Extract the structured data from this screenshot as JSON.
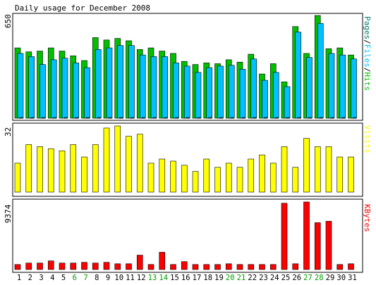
{
  "chart_data": [
    {
      "type": "bar",
      "title": "Daily usage for December 2008",
      "ylabel_left": "650",
      "series": [
        {
          "name": "Pages",
          "color": "#00806b",
          "values": [
            4,
            4,
            4,
            4,
            4,
            4,
            4,
            4,
            4,
            4,
            4,
            4,
            4,
            4,
            4,
            4,
            4,
            4,
            4,
            4,
            4,
            4,
            4,
            4,
            4,
            4,
            4,
            4,
            4,
            4,
            4
          ]
        },
        {
          "name": "Files",
          "color": "#00c0ff",
          "values": [
            410,
            390,
            340,
            370,
            380,
            350,
            320,
            435,
            445,
            460,
            460,
            400,
            390,
            390,
            350,
            330,
            290,
            320,
            330,
            335,
            310,
            375,
            240,
            290,
            200,
            545,
            385,
            600,
            410,
            400,
            375
          ]
        },
        {
          "name": "Hits",
          "color": "#00c000",
          "values": [
            445,
            420,
            425,
            445,
            425,
            395,
            365,
            510,
            495,
            505,
            490,
            435,
            445,
            425,
            410,
            360,
            340,
            350,
            345,
            370,
            355,
            405,
            280,
            345,
            230,
            580,
            410,
            650,
            440,
            445,
            400
          ]
        }
      ],
      "legend_text": [
        "Pages",
        "/",
        "Files",
        "/",
        "Hits"
      ],
      "ylim": [
        0,
        650
      ]
    },
    {
      "type": "bar",
      "ylabel_left": "32",
      "series": [
        {
          "name": "Visits",
          "color": "#ffff00",
          "values": [
            14,
            23,
            22,
            21,
            20,
            23,
            17,
            23,
            31,
            32,
            27,
            28,
            14,
            16,
            15,
            13,
            10,
            16,
            12,
            14,
            12,
            16,
            18,
            14,
            22,
            12,
            26,
            22,
            22,
            17,
            17
          ]
        }
      ],
      "legend_text": [
        "Visits"
      ],
      "ylim": [
        0,
        32
      ]
    },
    {
      "type": "bar",
      "ylabel_left": "9374",
      "series": [
        {
          "name": "KBytes",
          "color": "#ff0000",
          "values": [
            700,
            900,
            900,
            1200,
            900,
            900,
            1000,
            900,
            1000,
            800,
            800,
            2000,
            700,
            2400,
            700,
            1100,
            700,
            700,
            700,
            800,
            700,
            700,
            700,
            700,
            9200,
            800,
            9374,
            6500,
            6700,
            700,
            800
          ]
        }
      ],
      "legend_text": [
        "KBytes"
      ],
      "ylim": [
        0,
        9374
      ]
    }
  ],
  "x_axis": {
    "days": [
      "1",
      "2",
      "3",
      "4",
      "5",
      "6",
      "7",
      "8",
      "9",
      "10",
      "11",
      "12",
      "13",
      "14",
      "15",
      "16",
      "17",
      "18",
      "19",
      "20",
      "21",
      "22",
      "23",
      "24",
      "25",
      "26",
      "27",
      "28",
      "29",
      "30",
      "31"
    ],
    "weekend_days": [
      "6",
      "7",
      "13",
      "14",
      "20",
      "21",
      "27",
      "28"
    ],
    "weekday_color": "#000000",
    "weekend_color": "#00a000"
  },
  "colors": {
    "background": "#ffffff",
    "frame": "#000000",
    "panel_bg": "#ffffff"
  }
}
